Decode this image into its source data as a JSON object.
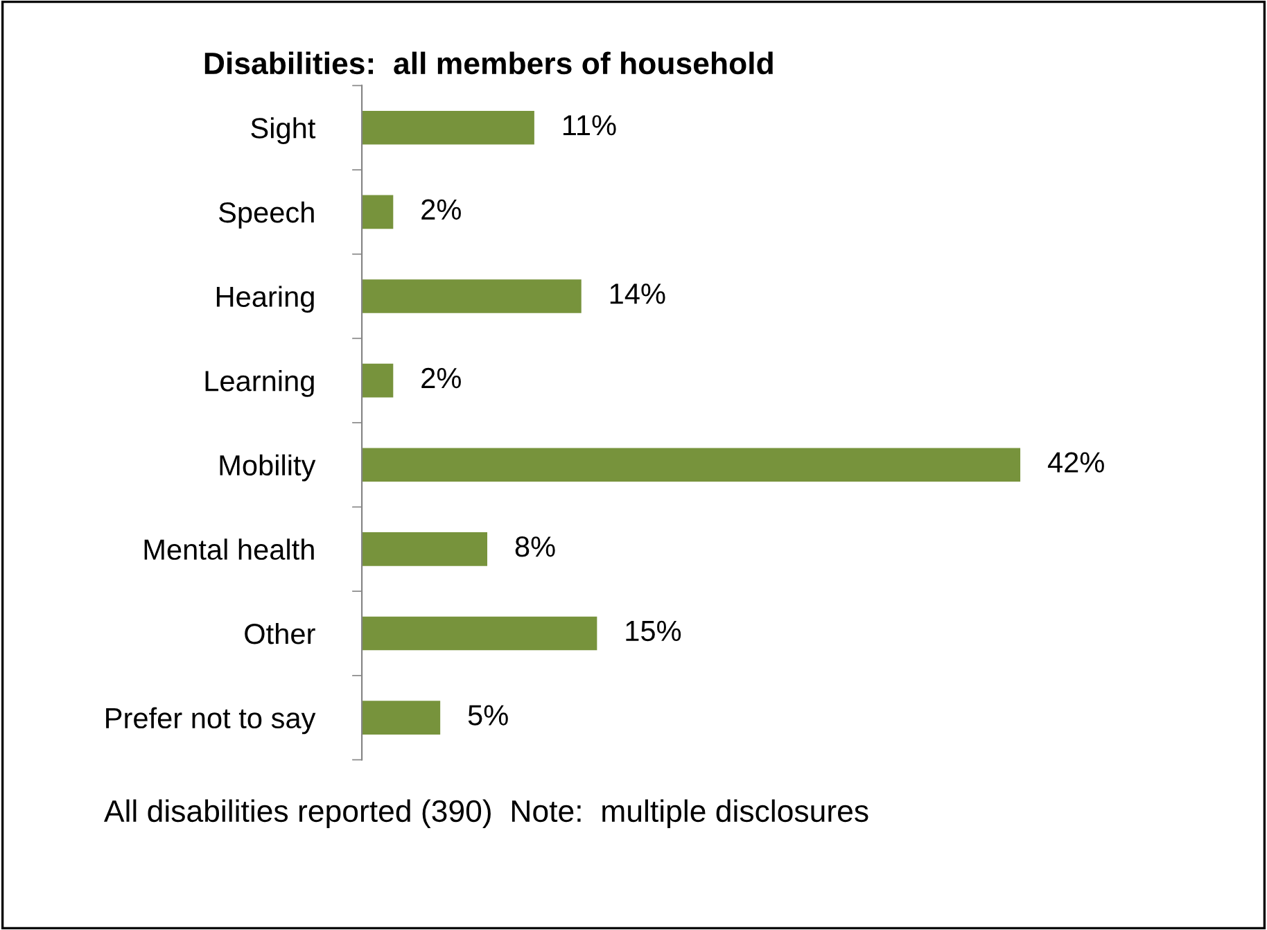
{
  "chart_data": {
    "type": "bar",
    "orientation": "horizontal",
    "title": "Disabilities:  all members of household",
    "categories": [
      "Sight",
      "Speech",
      "Hearing",
      "Learning",
      "Mobility",
      "Mental health",
      "Other",
      "Prefer not to say"
    ],
    "values": [
      11,
      2,
      14,
      2,
      42,
      8,
      15,
      5
    ],
    "value_labels": [
      "11%",
      "2%",
      "14%",
      "2%",
      "42%",
      "8%",
      "15%",
      "5%"
    ],
    "color": "#77933c",
    "grid": false,
    "annotations": [
      "All disabilities reported (390)  Note:  multiple disclosures"
    ]
  }
}
